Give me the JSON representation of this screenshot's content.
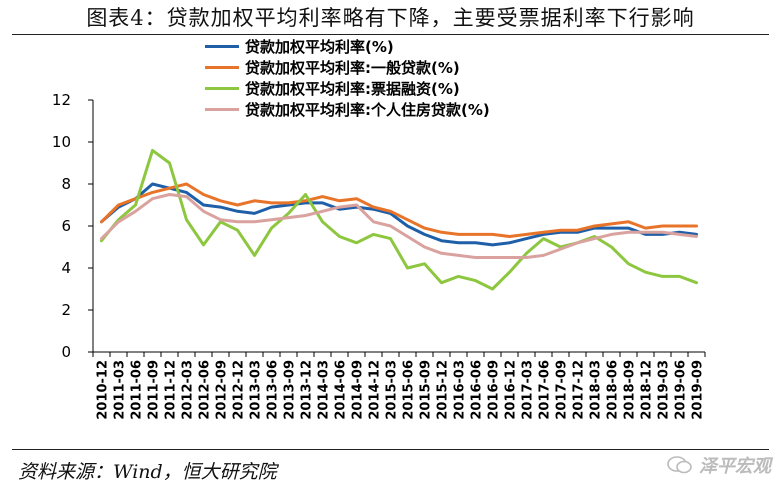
{
  "title": "图表4：贷款加权平均利率略有下降，主要受票据利率下行影响",
  "source": "资料来源：Wind，恒大研究院",
  "watermark": "泽平宏观",
  "colors": {
    "avg": "#1f5fa8",
    "general": "#e8742a",
    "bill": "#8dc63f",
    "mortgage": "#d9a29e",
    "axis": "#000000"
  },
  "chart_data": {
    "type": "line",
    "x": [
      "2010-12",
      "2011-03",
      "2011-06",
      "2011-09",
      "2011-12",
      "2012-03",
      "2012-06",
      "2012-09",
      "2012-12",
      "2013-03",
      "2013-06",
      "2013-09",
      "2013-12",
      "2014-03",
      "2014-06",
      "2014-09",
      "2014-12",
      "2015-03",
      "2015-06",
      "2015-09",
      "2015-12",
      "2016-03",
      "2016-06",
      "2016-09",
      "2016-12",
      "2017-03",
      "2017-06",
      "2017-09",
      "2017-12",
      "2018-03",
      "2018-06",
      "2018-09",
      "2018-12",
      "2019-03",
      "2019-06",
      "2019-09"
    ],
    "ylim": [
      0,
      12
    ],
    "yticks": [
      0,
      2,
      4,
      6,
      8,
      10,
      12
    ],
    "legend_position": "top-center",
    "series": [
      {
        "name": "贷款加权平均利率(%)",
        "color_key": "avg",
        "values": [
          6.2,
          6.9,
          7.3,
          8.0,
          7.8,
          7.6,
          7.0,
          6.9,
          6.7,
          6.6,
          6.9,
          7.0,
          7.1,
          7.1,
          6.8,
          6.9,
          6.8,
          6.6,
          6.0,
          5.6,
          5.3,
          5.2,
          5.2,
          5.1,
          5.2,
          5.4,
          5.6,
          5.7,
          5.7,
          5.9,
          5.9,
          5.9,
          5.6,
          5.6,
          5.7,
          5.6
        ]
      },
      {
        "name": "贷款加权平均利率:一般贷款(%)",
        "color_key": "general",
        "values": [
          6.2,
          7.0,
          7.3,
          7.6,
          7.8,
          8.0,
          7.5,
          7.2,
          7.0,
          7.2,
          7.1,
          7.1,
          7.2,
          7.4,
          7.2,
          7.3,
          6.9,
          6.7,
          6.3,
          5.9,
          5.7,
          5.6,
          5.6,
          5.6,
          5.5,
          5.6,
          5.7,
          5.8,
          5.8,
          6.0,
          6.1,
          6.2,
          5.9,
          6.0,
          6.0,
          6.0
        ]
      },
      {
        "name": "贷款加权平均利率:票据融资(%)",
        "color_key": "bill",
        "values": [
          5.3,
          6.3,
          7.0,
          9.6,
          9.0,
          6.3,
          5.1,
          6.2,
          5.8,
          4.6,
          5.9,
          6.6,
          7.5,
          6.2,
          5.5,
          5.2,
          5.6,
          5.4,
          4.0,
          4.2,
          3.3,
          3.6,
          3.4,
          3.0,
          3.8,
          4.7,
          5.4,
          5.0,
          5.2,
          5.5,
          5.0,
          4.2,
          3.8,
          3.6,
          3.6,
          3.3
        ]
      },
      {
        "name": "贷款加权平均利率:个人住房贷款(%)",
        "color_key": "mortgage",
        "values": [
          5.4,
          6.2,
          6.7,
          7.3,
          7.5,
          7.4,
          6.7,
          6.3,
          6.2,
          6.2,
          6.3,
          6.4,
          6.5,
          6.7,
          6.9,
          7.0,
          6.2,
          6.0,
          5.5,
          5.0,
          4.7,
          4.6,
          4.5,
          4.5,
          4.5,
          4.5,
          4.6,
          4.9,
          5.2,
          5.4,
          5.6,
          5.7,
          5.7,
          5.7,
          5.6,
          5.5
        ]
      }
    ]
  }
}
